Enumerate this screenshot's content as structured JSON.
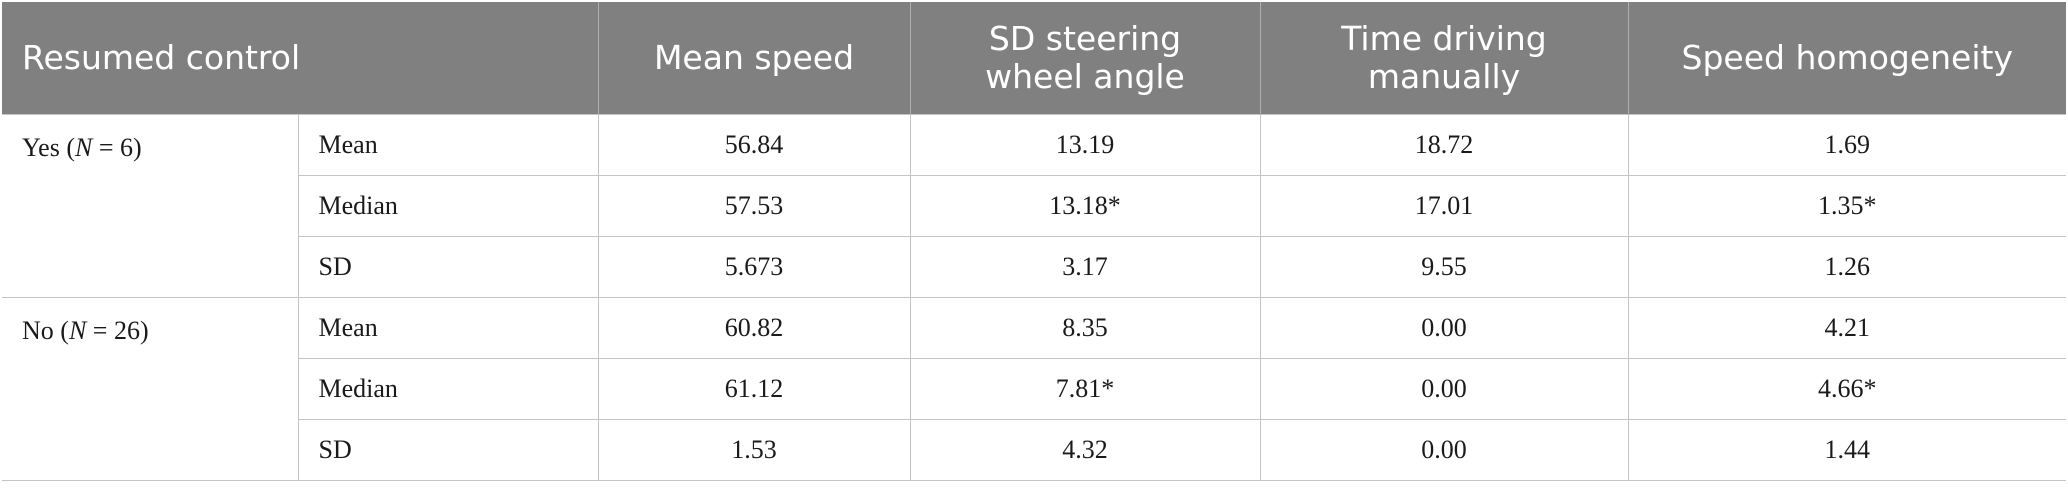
{
  "table": {
    "headers": {
      "group": "Resumed control",
      "mean_speed": "Mean speed",
      "sd_steering": [
        "SD steering",
        "wheel angle"
      ],
      "time_manual": [
        "Time driving",
        "manually"
      ],
      "speed_homogeneity": "Speed homogeneity"
    },
    "groups": [
      {
        "label_prefix": "Yes (",
        "label_n": "N",
        "label_suffix": " = 6)",
        "rows": [
          {
            "stat": "Mean",
            "mean_speed": "56.84",
            "sd_steering": "13.19",
            "time_manual": "18.72",
            "speed_homogeneity": "1.69"
          },
          {
            "stat": "Median",
            "mean_speed": "57.53",
            "sd_steering": "13.18*",
            "time_manual": "17.01",
            "speed_homogeneity": "1.35*"
          },
          {
            "stat": "SD",
            "mean_speed": "5.673",
            "sd_steering": "3.17",
            "time_manual": "9.55",
            "speed_homogeneity": "1.26"
          }
        ]
      },
      {
        "label_prefix": "No (",
        "label_n": "N",
        "label_suffix": " = 26)",
        "rows": [
          {
            "stat": "Mean",
            "mean_speed": "60.82",
            "sd_steering": "8.35",
            "time_manual": "0.00",
            "speed_homogeneity": "4.21"
          },
          {
            "stat": "Median",
            "mean_speed": "61.12",
            "sd_steering": "7.81*",
            "time_manual": "0.00",
            "speed_homogeneity": "4.66*"
          },
          {
            "stat": "SD",
            "mean_speed": "1.53",
            "sd_steering": "4.32",
            "time_manual": "0.00",
            "speed_homogeneity": "1.44"
          }
        ]
      }
    ]
  }
}
